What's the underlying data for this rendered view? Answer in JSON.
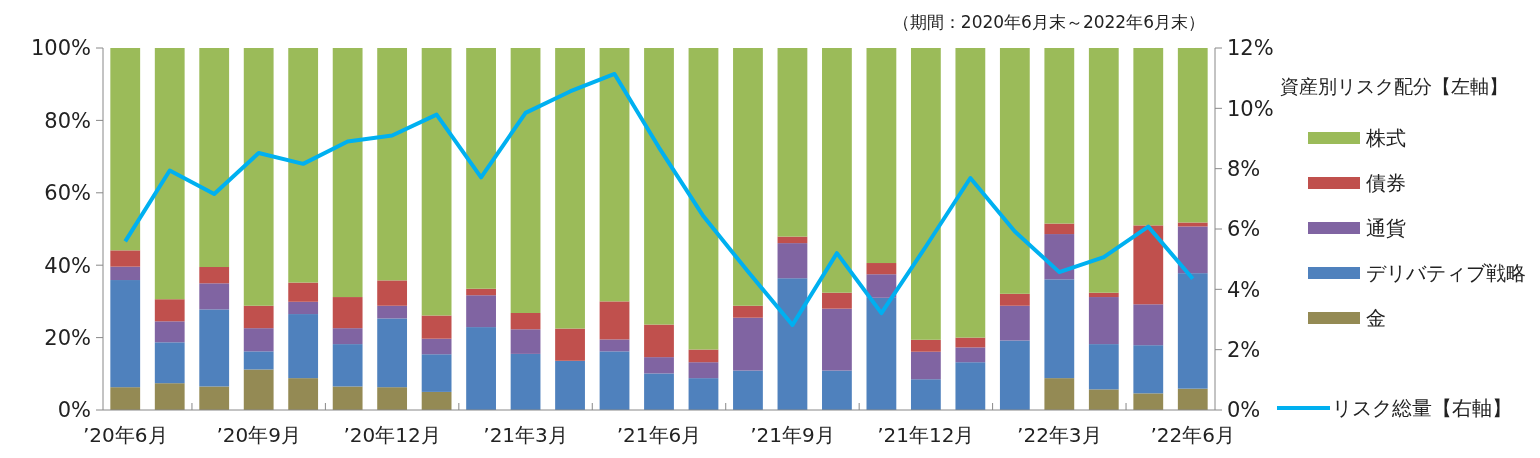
{
  "chart_data": {
    "type": "bar",
    "stacked": true,
    "legend": "right",
    "legend_title": "資産別リスク配分【左軸】",
    "annotations": [
      "（期間：2020年6月末～2022年6月末）"
    ],
    "categories": [
      "’20年6月",
      null,
      null,
      "’20年9月",
      null,
      null,
      "’20年12月",
      null,
      null,
      "’21年3月",
      null,
      null,
      "’21年6月",
      null,
      null,
      "’21年9月",
      null,
      null,
      "’21年12月",
      null,
      null,
      "’22年3月",
      null,
      null,
      "’22年6月"
    ],
    "ylim": [
      0,
      100
    ],
    "yticks": [
      {
        "value": 0,
        "label": "0%"
      },
      {
        "value": 20,
        "label": "20%"
      },
      {
        "value": 40,
        "label": "40%"
      },
      {
        "value": 60,
        "label": "60%"
      },
      {
        "value": 80,
        "label": "80%"
      },
      {
        "value": 100,
        "label": "100%"
      }
    ],
    "y2lim": [
      0,
      12
    ],
    "y2ticks": [
      {
        "value": 0,
        "label": "0%"
      },
      {
        "value": 2,
        "label": "2%"
      },
      {
        "value": 4,
        "label": "4%"
      },
      {
        "value": 6,
        "label": "6%"
      },
      {
        "value": 8,
        "label": "8%"
      },
      {
        "value": 10,
        "label": "10%"
      },
      {
        "value": 12,
        "label": "12%"
      }
    ],
    "series": [
      {
        "name": "金",
        "color": "#948a54",
        "values": [
          6.3,
          7.4,
          6.5,
          11.2,
          8.8,
          6.5,
          6.3,
          5.0,
          0,
          0,
          0,
          0,
          0,
          0,
          0,
          0,
          0,
          0,
          0,
          0,
          0,
          8.8,
          5.7,
          4.6,
          5.9
        ]
      },
      {
        "name": "デリバティブ戦略",
        "color": "#4f81bd",
        "values": [
          29.6,
          11.3,
          21.3,
          5.0,
          17.7,
          11.7,
          19.0,
          10.4,
          22.9,
          15.5,
          13.6,
          16.2,
          10.1,
          8.8,
          10.9,
          36.4,
          10.9,
          31.0,
          8.5,
          13.2,
          19.2,
          27.3,
          12.5,
          13.3,
          31.9
        ]
      },
      {
        "name": "通貨",
        "color": "#8064a2",
        "values": [
          3.7,
          5.8,
          7.2,
          6.4,
          3.4,
          4.4,
          3.5,
          4.3,
          8.8,
          6.8,
          0,
          3.3,
          4.5,
          4.4,
          14.6,
          9.7,
          17.1,
          6.5,
          7.6,
          4.1,
          9.6,
          12.5,
          13.0,
          11.3,
          12.9
        ]
      },
      {
        "name": "債券",
        "color": "#c0504d",
        "values": [
          4.5,
          6.1,
          4.5,
          6.2,
          5.3,
          8.6,
          7.0,
          6.4,
          1.8,
          4.5,
          8.9,
          10.5,
          9.0,
          3.5,
          3.3,
          1.8,
          4.4,
          3.1,
          3.3,
          2.7,
          3.3,
          2.9,
          1.2,
          21.8,
          1.1
        ]
      },
      {
        "name": "株式",
        "color": "#9bbb59",
        "values": [
          55.9,
          69.4,
          60.5,
          71.2,
          64.8,
          68.8,
          64.2,
          73.9,
          66.5,
          73.2,
          77.5,
          70.0,
          76.4,
          83.3,
          71.2,
          52.1,
          67.6,
          59.4,
          80.6,
          80.0,
          67.9,
          48.5,
          67.6,
          49.0,
          48.2
        ]
      },
      {
        "name": "リスク総量【右軸】",
        "type": "line",
        "axis": "y2",
        "color": "#00b0f0",
        "values": [
          5.59,
          7.94,
          7.16,
          8.52,
          8.16,
          8.9,
          9.1,
          9.79,
          7.71,
          9.85,
          10.56,
          11.14,
          8.7,
          6.42,
          4.59,
          2.82,
          5.2,
          3.21,
          5.42,
          7.69,
          5.92,
          4.57,
          5.07,
          6.08,
          4.35
        ]
      }
    ]
  }
}
